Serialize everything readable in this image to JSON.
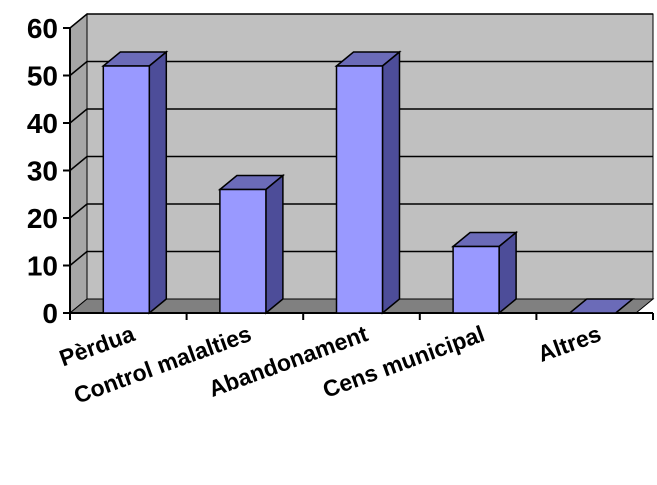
{
  "chart_data": {
    "type": "bar",
    "title": "",
    "xlabel": "",
    "ylabel": "",
    "categories": [
      "Pèrdua",
      "Control malalties",
      "Abandonament",
      "Cens municipal",
      "Altres"
    ],
    "values": [
      52,
      26,
      52,
      14,
      0
    ],
    "ylim": [
      0,
      60
    ],
    "yticks": [
      0,
      10,
      20,
      30,
      40,
      50,
      60
    ],
    "grid": true,
    "legend": "none",
    "style": "3d-column",
    "colors": {
      "bar_front": "#9999ff",
      "bar_side": "#4d4d99",
      "bar_top": "#6b6bb8",
      "wall": "#c0c0c0",
      "floor": "#808080",
      "gridline": "#000000"
    }
  }
}
